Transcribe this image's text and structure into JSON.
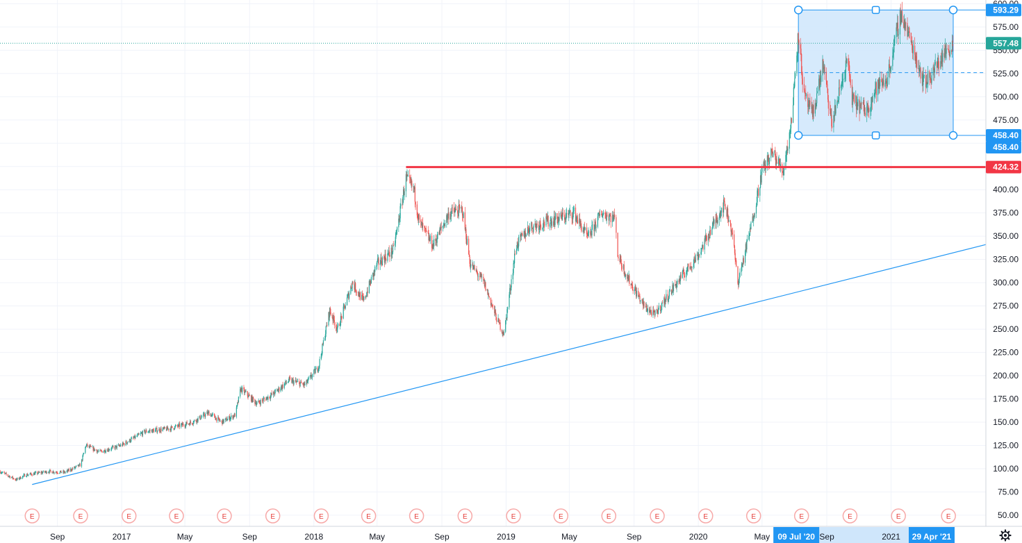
{
  "chart_data": {
    "type": "candlestick",
    "title": "",
    "xlabel": "",
    "ylabel": "",
    "ylim": [
      38,
      604
    ],
    "xlim": [
      "2016-05-15",
      "2021-06-30"
    ],
    "grid": true,
    "legend": "none",
    "y_ticks": [
      50,
      75,
      100,
      125,
      150,
      175,
      200,
      225,
      250,
      275,
      300,
      325,
      350,
      375,
      400,
      425,
      450,
      475,
      500,
      525,
      550,
      575,
      600
    ],
    "y_tick_labels": [
      "50.00",
      "75.00",
      "100.00",
      "125.00",
      "150.00",
      "175.00",
      "200.00",
      "225.00",
      "250.00",
      "275.00",
      "300.00",
      "325.00",
      "350.00",
      "375.00",
      "400.00",
      "425.00",
      "450.00",
      "475.00",
      "500.00",
      "525.00",
      "550.00",
      "575.00",
      "600.00"
    ],
    "x_ticks": [
      {
        "date": "2016-09-01",
        "label": "Sep"
      },
      {
        "date": "2017-01-01",
        "label": "2017"
      },
      {
        "date": "2017-05-01",
        "label": "May"
      },
      {
        "date": "2017-09-01",
        "label": "Sep"
      },
      {
        "date": "2018-01-01",
        "label": "2018"
      },
      {
        "date": "2018-05-01",
        "label": "May"
      },
      {
        "date": "2018-09-01",
        "label": "Sep"
      },
      {
        "date": "2019-01-01",
        "label": "2019"
      },
      {
        "date": "2019-05-01",
        "label": "May"
      },
      {
        "date": "2019-09-01",
        "label": "Sep"
      },
      {
        "date": "2020-01-01",
        "label": "2020"
      },
      {
        "date": "2020-05-01",
        "label": "May"
      },
      {
        "date": "2020-09-01",
        "label": "Sep"
      },
      {
        "date": "2021-01-01",
        "label": "2021"
      }
    ],
    "price_path": [
      [
        "2016-05-15",
        97
      ],
      [
        "2016-06-15",
        88
      ],
      [
        "2016-07-01",
        93
      ],
      [
        "2016-08-15",
        97
      ],
      [
        "2016-09-15",
        96
      ],
      [
        "2016-10-15",
        104
      ],
      [
        "2016-10-25",
        125
      ],
      [
        "2016-11-20",
        118
      ],
      [
        "2016-12-31",
        125
      ],
      [
        "2017-02-15",
        140
      ],
      [
        "2017-04-01",
        143
      ],
      [
        "2017-05-15",
        150
      ],
      [
        "2017-06-15",
        160
      ],
      [
        "2017-07-10",
        150
      ],
      [
        "2017-08-05",
        158
      ],
      [
        "2017-08-15",
        186
      ],
      [
        "2017-09-15",
        170
      ],
      [
        "2017-10-15",
        180
      ],
      [
        "2017-11-15",
        195
      ],
      [
        "2017-12-15",
        190
      ],
      [
        "2018-01-10",
        210
      ],
      [
        "2018-01-31",
        270
      ],
      [
        "2018-02-15",
        250
      ],
      [
        "2018-03-15",
        300
      ],
      [
        "2018-04-05",
        280
      ],
      [
        "2018-05-01",
        320
      ],
      [
        "2018-06-01",
        335
      ],
      [
        "2018-06-25",
        412
      ],
      [
        "2018-07-10",
        400
      ],
      [
        "2018-07-20",
        365
      ],
      [
        "2018-08-15",
        340
      ],
      [
        "2018-09-15",
        375
      ],
      [
        "2018-10-10",
        378
      ],
      [
        "2018-10-25",
        320
      ],
      [
        "2018-11-20",
        300
      ],
      [
        "2018-12-15",
        260
      ],
      [
        "2018-12-28",
        245
      ],
      [
        "2019-01-20",
        340
      ],
      [
        "2019-02-15",
        360
      ],
      [
        "2019-04-15",
        370
      ],
      [
        "2019-05-10",
        375
      ],
      [
        "2019-06-05",
        348
      ],
      [
        "2019-07-01",
        375
      ],
      [
        "2019-07-15",
        372
      ],
      [
        "2019-07-28",
        368
      ],
      [
        "2019-08-01",
        330
      ],
      [
        "2019-08-20",
        305
      ],
      [
        "2019-09-20",
        275
      ],
      [
        "2019-10-10",
        265
      ],
      [
        "2019-11-15",
        295
      ],
      [
        "2020-01-01",
        330
      ],
      [
        "2020-02-10",
        375
      ],
      [
        "2020-02-20",
        385
      ],
      [
        "2020-03-05",
        355
      ],
      [
        "2020-03-16",
        300
      ],
      [
        "2020-04-10",
        360
      ],
      [
        "2020-05-01",
        420
      ],
      [
        "2020-05-20",
        440
      ],
      [
        "2020-06-10",
        420
      ],
      [
        "2020-06-25",
        470
      ],
      [
        "2020-07-09",
        570
      ],
      [
        "2020-07-20",
        500
      ],
      [
        "2020-08-05",
        480
      ],
      [
        "2020-08-25",
        535
      ],
      [
        "2020-09-10",
        470
      ],
      [
        "2020-10-10",
        540
      ],
      [
        "2020-10-20",
        495
      ],
      [
        "2020-11-15",
        485
      ],
      [
        "2020-12-05",
        510
      ],
      [
        "2020-12-25",
        520
      ],
      [
        "2021-01-20",
        590
      ],
      [
        "2021-02-10",
        555
      ],
      [
        "2021-03-05",
        515
      ],
      [
        "2021-03-20",
        525
      ],
      [
        "2021-04-10",
        545
      ],
      [
        "2021-04-29",
        557.48
      ]
    ],
    "current_price": {
      "value": 557.48,
      "label": "557.48",
      "color": "#26a69a"
    },
    "horizontal_line": {
      "value": 424.32,
      "label": "424.32",
      "start": "2018-06-25",
      "color": "#f23645"
    },
    "trend_line": {
      "start": [
        "2016-07-15",
        83
      ],
      "end": [
        "2021-06-30",
        341
      ],
      "color": "#2196f3"
    },
    "range_box": {
      "start": "2020-07-09",
      "end": "2021-04-29",
      "top": 593.29,
      "bottom": 458.4,
      "mid": 525.85,
      "top_label": "593.29",
      "bottom_label": "458.40",
      "bottom_label_2": "458.40",
      "start_label": "09 Jul '20",
      "end_label": "29 Apr '21",
      "color": "#2196f3",
      "fill": "#cfe6fb"
    },
    "earnings_markers": {
      "label": "E",
      "dates": [
        "2016-07-15",
        "2016-10-15",
        "2017-01-15",
        "2017-04-15",
        "2017-07-15",
        "2017-10-15",
        "2018-01-15",
        "2018-04-15",
        "2018-07-15",
        "2018-10-15",
        "2019-01-15",
        "2019-04-15",
        "2019-07-15",
        "2019-10-15",
        "2020-01-15",
        "2020-04-15",
        "2020-07-15",
        "2020-10-15",
        "2021-01-15",
        "2021-04-20"
      ]
    },
    "up_color": "#26a69a",
    "down_color": "#ef5350"
  },
  "ui": {
    "settings_icon": "gear-icon"
  }
}
